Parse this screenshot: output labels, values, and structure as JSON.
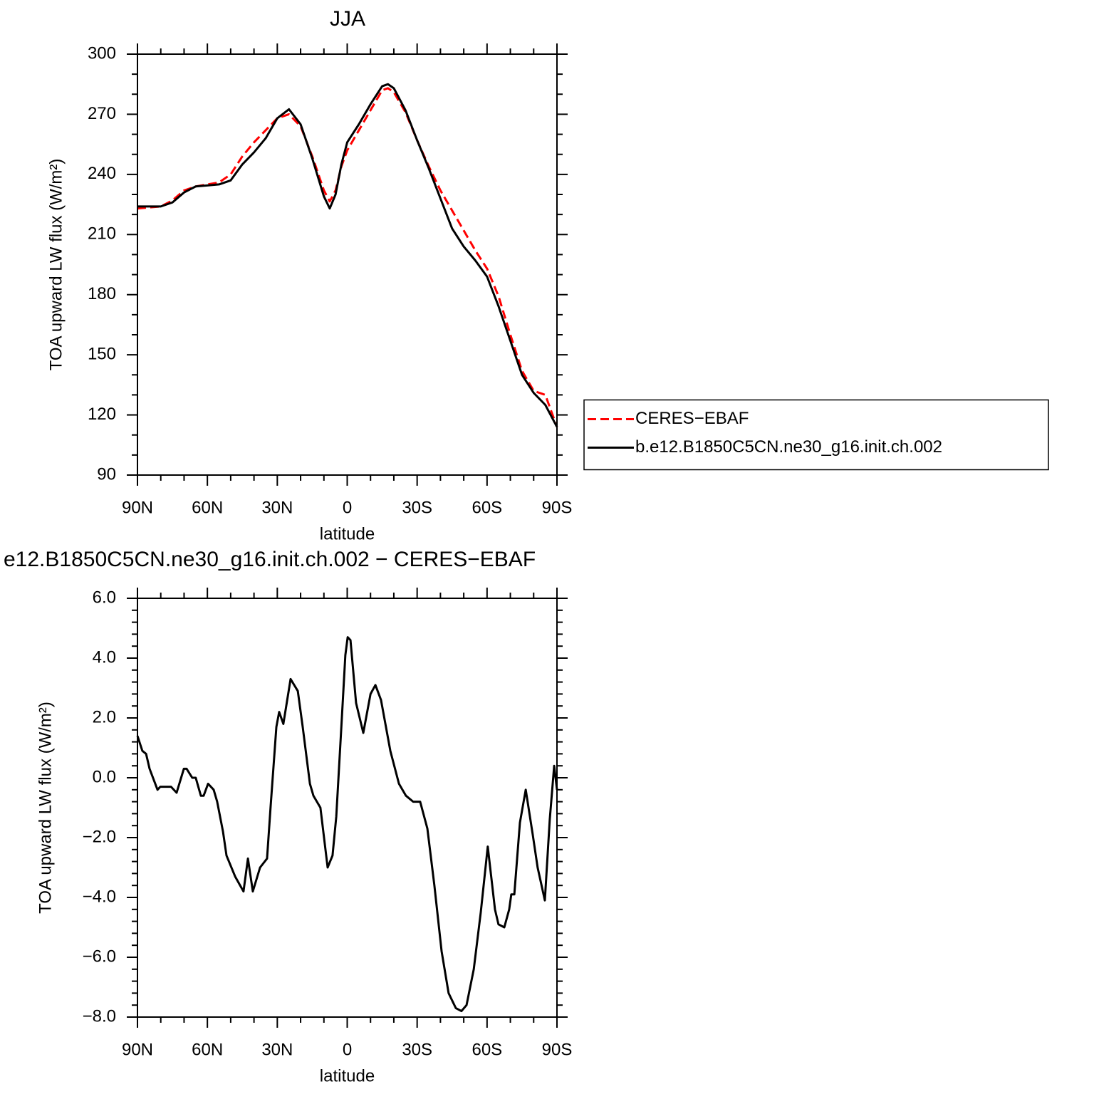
{
  "chart_data": [
    {
      "type": "line",
      "title": "JJA",
      "xlabel": "latitude",
      "ylabel": "TOA upward LW flux (W/m²)",
      "x": [
        90,
        85,
        80,
        75,
        70,
        65,
        60,
        55,
        50,
        45,
        40,
        35,
        30,
        25,
        20,
        15,
        10,
        7.5,
        5,
        2.5,
        0,
        -5,
        -10,
        -15,
        -17.5,
        -20,
        -25,
        -30,
        -35,
        -40,
        -45,
        -50,
        -55,
        -60,
        -65,
        -70,
        -75,
        -80,
        -85,
        -90
      ],
      "series": [
        {
          "name": "CERES−EBAF",
          "color": "#ff0000",
          "dash": true,
          "values": [
            223,
            223.5,
            224,
            227,
            232,
            234,
            235,
            236,
            240,
            249,
            256,
            262,
            268,
            270,
            264,
            249,
            232,
            226.5,
            232,
            244,
            252,
            262,
            272,
            282,
            283,
            281,
            271,
            257,
            244,
            232,
            222,
            212,
            202,
            193,
            179,
            160,
            142,
            132,
            130,
            114
          ]
        },
        {
          "name": "b.e12.B1850C5CN.ne30_g16.init.ch.002",
          "color": "#000000",
          "dash": false,
          "values": [
            224,
            224,
            224,
            226,
            231,
            234,
            234.5,
            235,
            237,
            245,
            251,
            258,
            268,
            272.5,
            265,
            248,
            229,
            223,
            230,
            245,
            256,
            265,
            275,
            284,
            285,
            283,
            272,
            257,
            243,
            228,
            213,
            204,
            197,
            189,
            174,
            157,
            140,
            131,
            125,
            114
          ]
        }
      ],
      "xlim": [
        90,
        -90
      ],
      "xticks": [
        {
          "value": 90,
          "label": "90N"
        },
        {
          "value": 60,
          "label": "60N"
        },
        {
          "value": 30,
          "label": "30N"
        },
        0,
        {
          "value": -30,
          "label": "30S"
        },
        {
          "value": -60,
          "label": "60S"
        },
        {
          "value": -90,
          "label": "90S"
        }
      ],
      "xminorticks": [
        80,
        70,
        50,
        40,
        20,
        10,
        -10,
        -20,
        -40,
        -50,
        -70,
        -80
      ],
      "ylim": [
        90,
        300
      ],
      "yticks": [
        90,
        120,
        150,
        180,
        210,
        240,
        270,
        300
      ],
      "yminorticks": [
        100,
        110,
        130,
        140,
        160,
        170,
        190,
        200,
        220,
        230,
        250,
        260,
        280,
        290
      ],
      "legend": "right"
    },
    {
      "type": "line",
      "title": "e12.B1850C5CN.ne30_g16.init.ch.002 − CERES−EBAF",
      "xlabel": "latitude",
      "ylabel": "TOA upward LW flux (W/m²)",
      "x": [
        90,
        87.9,
        86.3,
        84.8,
        81.4,
        80.2,
        75.6,
        73.2,
        70.1,
        68.9,
        66.5,
        65,
        62.8,
        61.6,
        59.7,
        57.3,
        55.8,
        53.3,
        51.8,
        48.1,
        44.5,
        42.6,
        40.5,
        37.4,
        34.4,
        32.9,
        30.4,
        29.2,
        27.4,
        24.3,
        21.2,
        19.1,
        16,
        14.5,
        11.5,
        8.4,
        6.3,
        4.7,
        2.3,
        0.8,
        -0.2,
        -1.4,
        -3.8,
        -6.9,
        -10,
        -12.1,
        -14.5,
        -18.5,
        -22.2,
        -25.2,
        -28.3,
        -31.3,
        -34.4,
        -37.4,
        -40.5,
        -43.5,
        -46.6,
        -49,
        -51.2,
        -54.3,
        -57.3,
        -60.3,
        -63.4,
        -64.9,
        -67.4,
        -69.5,
        -70.4,
        -71.7,
        -74.1,
        -76.6,
        -79.6,
        -81.7,
        -84.8,
        -86.9,
        -88.8,
        -90
      ],
      "series": [
        {
          "color": "#000000",
          "dash": false,
          "values": [
            1.4,
            0.9,
            0.8,
            0.3,
            -0.4,
            -0.3,
            -0.3,
            -0.5,
            0.3,
            0.3,
            0,
            0,
            -0.6,
            -0.6,
            -0.2,
            -0.4,
            -0.8,
            -1.8,
            -2.6,
            -3.3,
            -3.8,
            -2.7,
            -3.8,
            -3.0,
            -2.7,
            -1.0,
            1.7,
            2.2,
            1.8,
            3.3,
            2.9,
            1.7,
            -0.2,
            -0.6,
            -1.0,
            -3.0,
            -2.6,
            -1.3,
            2.0,
            4.1,
            4.7,
            4.6,
            2.5,
            1.5,
            2.8,
            3.1,
            2.6,
            0.9,
            -0.2,
            -0.6,
            -0.8,
            -0.8,
            -1.7,
            -3.6,
            -5.8,
            -7.2,
            -7.7,
            -7.8,
            -7.6,
            -6.4,
            -4.5,
            -2.3,
            -4.4,
            -4.9,
            -5.0,
            -4.4,
            -3.9,
            -3.9,
            -1.5,
            -0.4,
            -1.9,
            -3.0,
            -4.1,
            -1.4,
            0.4,
            -0.4
          ]
        }
      ],
      "xlim": [
        90,
        -90
      ],
      "xticks": [
        {
          "value": 90,
          "label": "90N"
        },
        {
          "value": 60,
          "label": "60N"
        },
        {
          "value": 30,
          "label": "30N"
        },
        0,
        {
          "value": -30,
          "label": "30S"
        },
        {
          "value": -60,
          "label": "60S"
        },
        {
          "value": -90,
          "label": "90S"
        }
      ],
      "xminorticks": [
        80,
        70,
        50,
        40,
        20,
        10,
        -10,
        -20,
        -40,
        -50,
        -70,
        -80
      ],
      "ylim": [
        -8,
        6
      ],
      "yticks": [
        {
          "value": -8,
          "label": "−8.0"
        },
        {
          "value": -6,
          "label": "−6.0"
        },
        {
          "value": -4,
          "label": "−4.0"
        },
        {
          "value": -2,
          "label": "−2.0"
        },
        {
          "value": 0,
          "label": "0.0"
        },
        {
          "value": 2,
          "label": "2.0"
        },
        {
          "value": 4,
          "label": "4.0"
        },
        {
          "value": 6,
          "label": "6.0"
        }
      ],
      "yminorticks": [
        -7.6,
        -7.2,
        -6.8,
        -6.4,
        -5.6,
        -5.2,
        -4.8,
        -4.4,
        -3.6,
        -3.2,
        -2.8,
        -2.4,
        -1.6,
        -1.2,
        -0.8,
        -0.4,
        0.4,
        0.8,
        1.2,
        1.6,
        2.4,
        2.8,
        3.2,
        3.6,
        4.4,
        4.8,
        5.2,
        5.6
      ]
    }
  ]
}
